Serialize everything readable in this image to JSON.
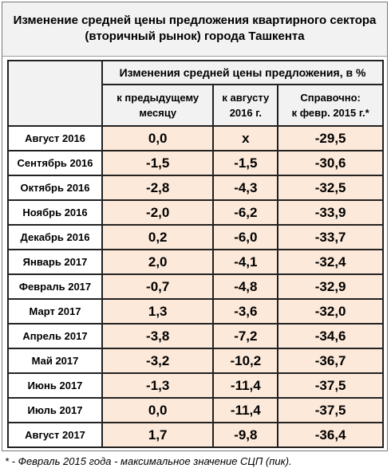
{
  "header": {
    "title": [
      "Изменение средней цены предложения квартирного сектора",
      "(вторичный рынок) города Ташкента"
    ]
  },
  "table": {
    "group_header": "Изменения средней цены предложения, в %",
    "columns": [
      [
        "к предыдущему",
        "месяцу"
      ],
      [
        "к августу",
        "2016 г."
      ],
      [
        "Справочно:",
        "к февр. 2015 г.*"
      ]
    ],
    "rows": [
      [
        "Август 2016",
        "0,0",
        "x",
        "-29,5"
      ],
      [
        "Сентябрь 2016",
        "-1,5",
        "-1,5",
        "-30,6"
      ],
      [
        "Октябрь 2016",
        "-2,8",
        "-4,3",
        "-32,5"
      ],
      [
        "Ноябрь 2016",
        "-2,0",
        "-6,2",
        "-33,9"
      ],
      [
        "Декабрь 2016",
        "0,2",
        "-6,0",
        "-33,7"
      ],
      [
        "Январь 2017",
        "2,0",
        "-4,1",
        "-32,4"
      ],
      [
        "Февраль 2017",
        "-0,7",
        "-4,8",
        "-32,9"
      ],
      [
        "Март 2017",
        "1,3",
        "-3,6",
        "-32,0"
      ],
      [
        "Апрель 2017",
        "-3,8",
        "-7,2",
        "-34,6"
      ],
      [
        "Май 2017",
        "-3,2",
        "-10,2",
        "-36,7"
      ],
      [
        "Июнь 2017",
        "-1,3",
        "-11,4",
        "-37,5"
      ],
      [
        "Июль 2017",
        "0,0",
        "-11,4",
        "-37,5"
      ],
      [
        "Август 2017",
        "1,7",
        "-9,8",
        "-36,4"
      ]
    ]
  },
  "footnote": "* - Февраль 2015 года - максимальное значение СЦП (пик)."
}
